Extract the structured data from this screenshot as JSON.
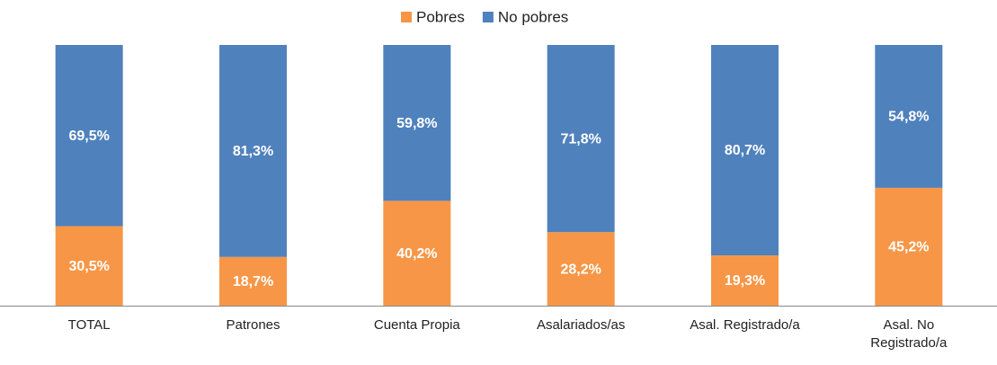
{
  "chart_data": {
    "type": "stacked_bar",
    "categories": [
      "TOTAL",
      "Patrones",
      "Cuenta Propia",
      "Asalariados/as",
      "Asal. Registrado/a",
      "Asal. No Registrado/a"
    ],
    "series": [
      {
        "name": "Pobres",
        "color": "#f79646",
        "values": [
          30.5,
          18.7,
          40.2,
          28.2,
          19.3,
          45.2
        ],
        "value_labels": [
          "30,5%",
          "18,7%",
          "40,2%",
          "28,2%",
          "19,3%",
          "45,2%"
        ]
      },
      {
        "name": "No pobres",
        "color": "#4f81bd",
        "values": [
          69.5,
          81.3,
          59.8,
          71.8,
          80.7,
          54.8
        ],
        "value_labels": [
          "69,5%",
          "81,3%",
          "59,8%",
          "71,8%",
          "80,7%",
          "54,8%"
        ]
      }
    ],
    "ylim": [
      0,
      100
    ],
    "legend": "top"
  }
}
